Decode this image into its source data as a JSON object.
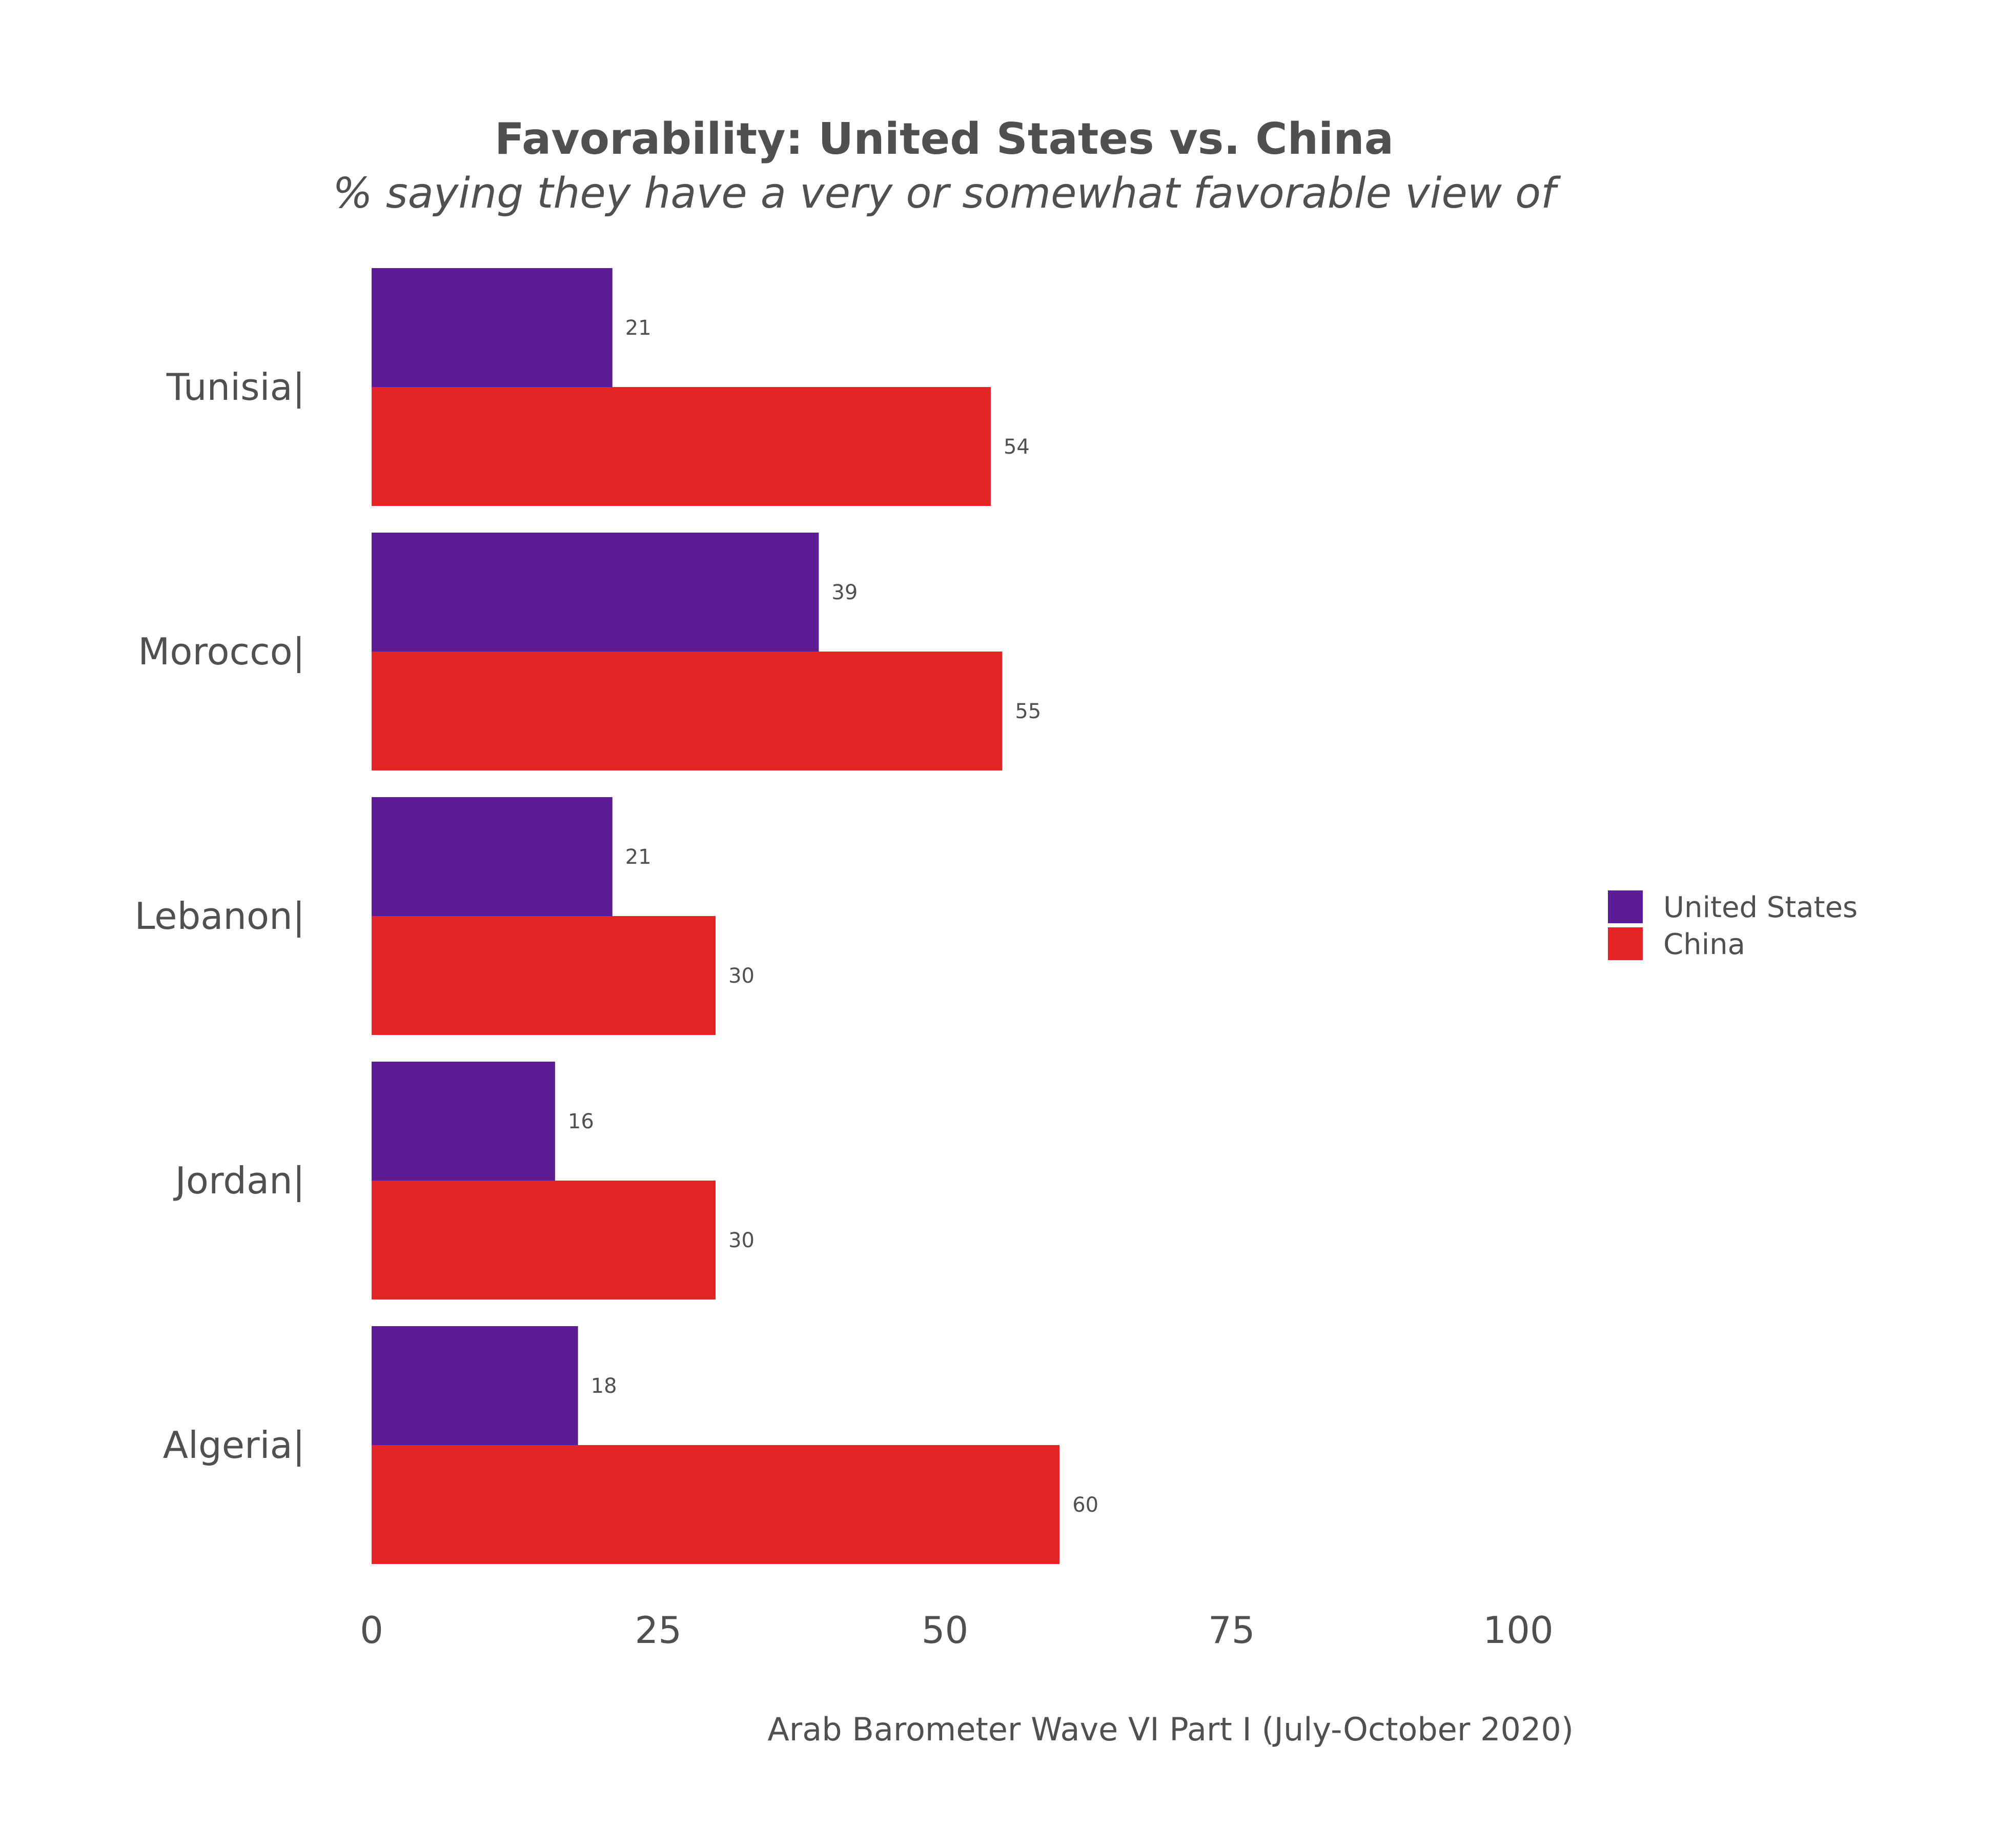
{
  "chart_data": {
    "type": "bar",
    "orientation": "horizontal",
    "title": "Favorability: United States vs. China",
    "subtitle": "% saying they have a very or somewhat favorable view of",
    "caption": "Arab Barometer Wave VI Part I (July-October 2020)",
    "categories": [
      "Tunisia",
      "Morocco",
      "Lebanon",
      "Jordan",
      "Algeria"
    ],
    "category_suffix": "|",
    "series": [
      {
        "name": "United States",
        "color": "#5c1c94",
        "values": [
          21,
          39,
          21,
          16,
          18
        ]
      },
      {
        "name": "China",
        "color": "#e32526",
        "values": [
          54,
          55,
          30,
          30,
          60
        ]
      }
    ],
    "xlim": [
      0,
      100
    ],
    "xticks": [
      0,
      25,
      50,
      75,
      100
    ],
    "grid": false,
    "legend_position": "right"
  }
}
